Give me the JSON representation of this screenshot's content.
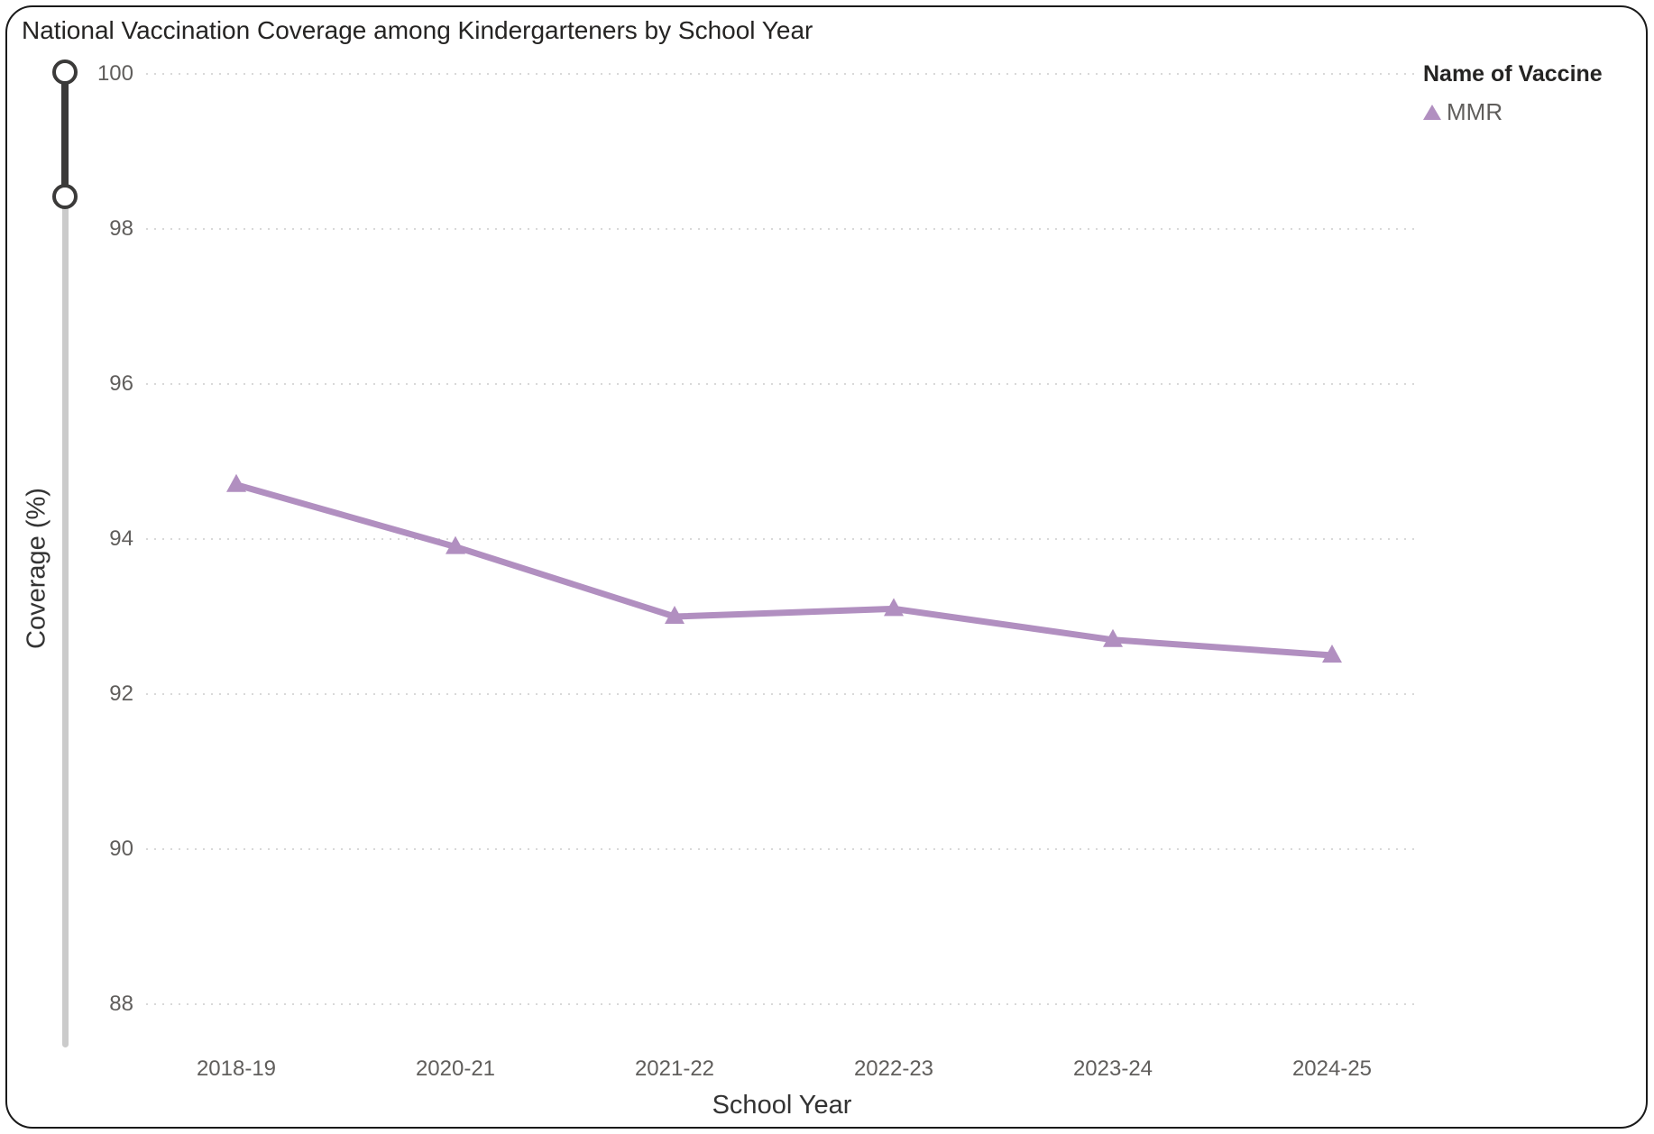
{
  "chart": {
    "title": "National Vaccination Coverage among Kindergarteners by School Year",
    "x_axis_title": "School Year",
    "y_axis_title": "Coverage (%)",
    "legend_title": "Name of Vaccine",
    "legend_items": [
      {
        "label": "MMR",
        "marker": "triangle",
        "color": "#b18fc0"
      }
    ]
  },
  "chart_data": {
    "type": "line",
    "title": "National Vaccination Coverage among Kindergarteners by School Year",
    "xlabel": "School Year",
    "ylabel": "Coverage (%)",
    "categories": [
      "2018-19",
      "2020-21",
      "2021-22",
      "2022-23",
      "2023-24",
      "2024-25"
    ],
    "series": [
      {
        "name": "MMR",
        "values": [
          94.7,
          93.9,
          93.0,
          93.1,
          92.7,
          92.5
        ],
        "color": "#b18fc0",
        "marker": "triangle"
      }
    ],
    "y_ticks": [
      100,
      98,
      96,
      94,
      92,
      90,
      88
    ],
    "ylim": [
      87.4,
      100
    ],
    "grid": "horizontal-dotted",
    "legend_position": "top-right"
  },
  "slider": {
    "orientation": "vertical",
    "type": "range",
    "handle_count": 2
  },
  "colors": {
    "series_purple": "#b18fc0",
    "grid_dot": "#d9d9d9",
    "axis_text": "#605e5c",
    "title_text": "#252423",
    "slider_track": "#cbcbcb",
    "slider_active": "#3b3a39"
  }
}
